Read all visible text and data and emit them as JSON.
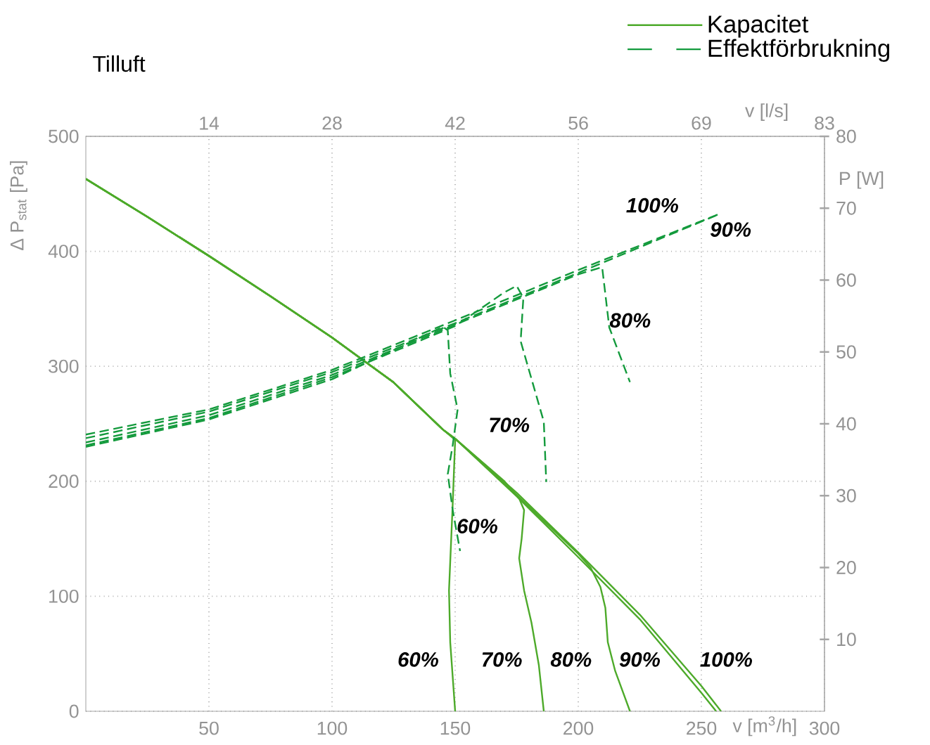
{
  "chart_data": {
    "type": "line",
    "title": "Tilluft",
    "xlabel": "v [m$^{3}$/h]",
    "ylabel": "Δ P$_{stat}$ [Pa]",
    "x2label": "v [l/s]",
    "y2label": "P [W]",
    "xlim": [
      0,
      300
    ],
    "xticks": [
      50,
      100,
      150,
      200,
      250,
      300
    ],
    "ylim": [
      0,
      500
    ],
    "yticks": [
      0,
      100,
      200,
      300,
      400,
      500
    ],
    "x2lim": [
      0,
      83.33
    ],
    "x2ticks": [
      {
        "value": 13.89,
        "label": "14"
      },
      {
        "value": 27.78,
        "label": "28"
      },
      {
        "value": 41.67,
        "label": "42"
      },
      {
        "value": 55.56,
        "label": "56"
      },
      {
        "value": 69.44,
        "label": "69"
      },
      {
        "value": 83.33,
        "label": "83"
      }
    ],
    "y2lim": [
      0,
      80
    ],
    "y2ticks": [
      10,
      20,
      30,
      40,
      50,
      60,
      70,
      80
    ],
    "grid": true,
    "legend": "top right",
    "series": [
      {
        "name": "Kapacitet",
        "line_style": "solid",
        "color": "#4daa2a",
        "x": [
          0,
          25,
          50,
          75,
          100,
          125,
          145,
          150,
          175,
          200,
          225,
          250,
          258
        ],
        "values": [
          463,
          430,
          396,
          361,
          325,
          286,
          245,
          237,
          190,
          138,
          84,
          22,
          0
        ]
      },
      {
        "line_style": "solid",
        "color": "#4daa2a",
        "x": [
          0,
          25,
          50,
          75,
          100,
          125,
          145,
          150,
          175,
          200,
          225,
          250,
          256
        ],
        "values": [
          463,
          430,
          396,
          361,
          325,
          286,
          245,
          237,
          187,
          134,
          80,
          16,
          0
        ]
      },
      {
        "line_style": "solid",
        "color": "#4daa2a",
        "x": [
          0,
          25,
          50,
          75,
          100,
          125,
          145,
          150,
          175,
          200,
          205,
          209,
          211,
          212,
          215,
          221
        ],
        "values": [
          463,
          430,
          396,
          361,
          325,
          286,
          245,
          237,
          188,
          137,
          125,
          108,
          90,
          60,
          35,
          0
        ]
      },
      {
        "line_style": "solid",
        "color": "#4daa2a",
        "x": [
          0,
          25,
          50,
          75,
          100,
          125,
          145,
          150,
          170,
          176,
          178,
          177,
          176,
          178,
          181,
          184,
          186
        ],
        "values": [
          463,
          430,
          396,
          361,
          325,
          286,
          245,
          237,
          200,
          185,
          175,
          150,
          133,
          105,
          77,
          40,
          0
        ]
      },
      {
        "line_style": "solid",
        "color": "#4daa2a",
        "x": [
          0,
          25,
          50,
          75,
          100,
          125,
          145,
          150,
          149,
          148,
          147.5,
          148,
          150
        ],
        "values": [
          463,
          430,
          396,
          361,
          325,
          286,
          245,
          236,
          180,
          130,
          105,
          60,
          0
        ]
      },
      {
        "name": "Effektförbrukning",
        "line_style": "dashed",
        "axis": "y2",
        "color": "#139a3c",
        "x": [
          0,
          50,
          100,
          150,
          200,
          258
        ],
        "values": [
          38.5,
          42,
          47.5,
          54.4,
          61.4,
          69.3
        ]
      },
      {
        "line_style": "dashed",
        "axis": "y2",
        "color": "#139a3c",
        "x": [
          0,
          50,
          100,
          150,
          200,
          256
        ],
        "values": [
          38,
          41.7,
          47.2,
          54,
          61,
          69
        ]
      },
      {
        "line_style": "dashed",
        "axis": "y2",
        "color": "#139a3c",
        "x": [
          0,
          50,
          100,
          150,
          200,
          209.7,
          212.6,
          221
        ],
        "values": [
          37.4,
          41.2,
          46.8,
          53.8,
          60.8,
          61.8,
          53.4,
          45.8
        ]
      },
      {
        "line_style": "dashed",
        "axis": "y2",
        "color": "#139a3c",
        "x": [
          0,
          50,
          100,
          150,
          170,
          175,
          177.7,
          176.6,
          186,
          187
        ],
        "values": [
          37,
          40.8,
          46.5,
          53.6,
          58.3,
          59.2,
          57.5,
          51.5,
          40.3,
          31.9
        ]
      },
      {
        "line_style": "dashed",
        "axis": "y2",
        "color": "#139a3c",
        "x": [
          0,
          50,
          100,
          145,
          147,
          148,
          151,
          149,
          147,
          149,
          152
        ],
        "values": [
          36.8,
          40.6,
          46.2,
          53.5,
          53,
          47,
          42,
          37,
          33,
          28,
          22.3
        ]
      }
    ],
    "annotations": [
      "60%",
      "70%",
      "80%",
      "90%",
      "100%",
      "100%",
      "90%",
      "80%",
      "70%",
      "60%"
    ]
  }
}
